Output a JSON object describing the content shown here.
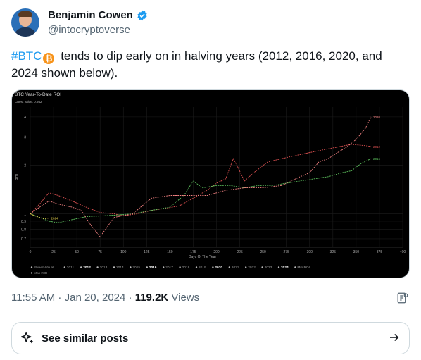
{
  "author": {
    "name": "Benjamin Cowen",
    "handle": "@intocryptoverse",
    "verified": true
  },
  "tweet": {
    "hashtag": "#BTC",
    "text": " tends to dip early on in halving years (2012, 2016, 2020, and 2024 shown below)."
  },
  "colors": {
    "accent": "#1d9bf0",
    "bitcoin": "#f7931a"
  },
  "meta": {
    "time": "11:55 AM",
    "separator": " · ",
    "date": "Jan 20, 2024",
    "separator2": " · ",
    "views_count": "119.2K",
    "views_label": " Views"
  },
  "similar": {
    "label": "See similar posts"
  },
  "chart_data": {
    "type": "line",
    "title": "BTC Year-To-Date ROI",
    "subtitle": "Latest Value: 0.942",
    "xlabel": "Days Of The Year",
    "ylabel": "ROI",
    "ylog": true,
    "xlim": [
      0,
      400
    ],
    "ylim": [
      0.62,
      4.6
    ],
    "x_ticks": [
      0,
      25,
      50,
      75,
      100,
      125,
      150,
      175,
      200,
      225,
      250,
      275,
      300,
      325,
      350,
      375,
      400
    ],
    "y_ticks": [
      0.7,
      0.8,
      0.9,
      1,
      2,
      3,
      4
    ],
    "legend": [
      "Show/Hide all",
      "2011",
      "2012",
      "2013",
      "2014",
      "2015",
      "2016",
      "2017",
      "2018",
      "2019",
      "2020",
      "2021",
      "2022",
      "2023",
      "2024",
      "Min ROI",
      "Max ROI"
    ],
    "legend_bold": [
      "2012",
      "2016",
      "2020",
      "2024"
    ],
    "series": [
      {
        "name": "2012",
        "color": "#e05252",
        "x": [
          0,
          10,
          20,
          30,
          45,
          60,
          75,
          90,
          100,
          115,
          130,
          145,
          160,
          175,
          190,
          200,
          210,
          218,
          222,
          230,
          240,
          255,
          270,
          285,
          300,
          315,
          330,
          345,
          360,
          366
        ],
        "y": [
          1.0,
          1.15,
          1.35,
          1.3,
          1.2,
          1.1,
          1.02,
          1.0,
          0.97,
          1.0,
          1.05,
          1.08,
          1.12,
          1.25,
          1.4,
          1.55,
          1.65,
          2.2,
          2.0,
          1.6,
          1.8,
          2.1,
          2.2,
          2.3,
          2.4,
          2.5,
          2.6,
          2.7,
          2.65,
          2.62
        ],
        "label": "2012"
      },
      {
        "name": "2016",
        "color": "#5ec25e",
        "x": [
          0,
          10,
          20,
          30,
          45,
          60,
          75,
          90,
          110,
          130,
          150,
          165,
          175,
          185,
          200,
          215,
          230,
          245,
          260,
          275,
          290,
          305,
          320,
          335,
          345,
          355,
          366
        ],
        "y": [
          1.0,
          0.95,
          0.9,
          0.88,
          0.92,
          0.96,
          0.97,
          0.98,
          1.0,
          1.05,
          1.1,
          1.3,
          1.6,
          1.45,
          1.5,
          1.5,
          1.45,
          1.5,
          1.5,
          1.55,
          1.6,
          1.65,
          1.7,
          1.8,
          1.85,
          2.05,
          2.2
        ],
        "label": "2016"
      },
      {
        "name": "2020",
        "color": "#f08080",
        "x": [
          0,
          10,
          20,
          30,
          45,
          55,
          65,
          75,
          90,
          110,
          130,
          150,
          170,
          190,
          210,
          230,
          250,
          270,
          290,
          300,
          310,
          320,
          330,
          340,
          350,
          360,
          366
        ],
        "y": [
          1.0,
          1.1,
          1.2,
          1.15,
          1.1,
          1.05,
          0.85,
          0.72,
          0.95,
          1.0,
          1.25,
          1.3,
          1.3,
          1.3,
          1.4,
          1.45,
          1.45,
          1.5,
          1.7,
          1.8,
          2.1,
          2.2,
          2.4,
          2.6,
          2.9,
          3.4,
          4.0
        ],
        "label": "2020"
      },
      {
        "name": "2024",
        "color": "#e8d44d",
        "x": [
          0,
          5,
          10,
          15,
          20
        ],
        "y": [
          1.0,
          0.97,
          0.95,
          0.93,
          0.942
        ],
        "label": "2024"
      }
    ]
  }
}
